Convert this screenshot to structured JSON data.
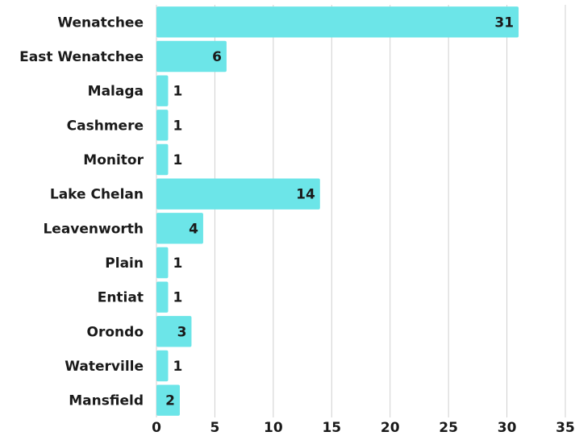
{
  "chart_data": {
    "type": "barh",
    "categories": [
      "Wenatchee",
      "East Wenatchee",
      "Malaga",
      "Cashmere",
      "Monitor",
      "Lake Chelan",
      "Leavenworth",
      "Plain",
      "Entiat",
      "Orondo",
      "Waterville",
      "Mansfield"
    ],
    "values": [
      31,
      6,
      1,
      1,
      1,
      14,
      4,
      1,
      1,
      3,
      1,
      2
    ],
    "color": "#6ce5e8",
    "xlim": [
      0,
      35
    ],
    "xticks": [
      0,
      5,
      10,
      15,
      20,
      25,
      30,
      35
    ],
    "grid": true
  }
}
